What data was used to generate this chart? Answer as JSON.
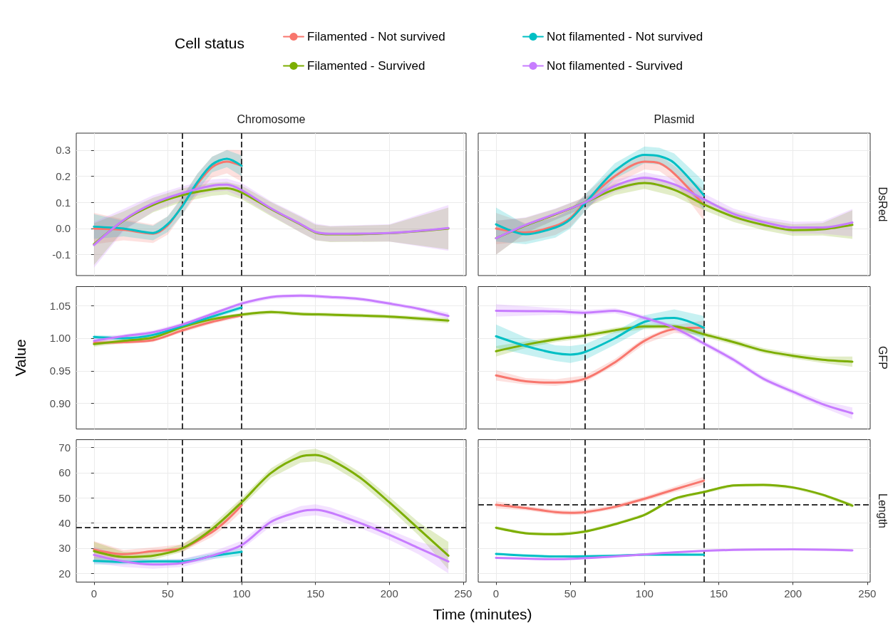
{
  "chart_data": [
    {
      "type": "line",
      "title": "Chromosome",
      "legend_title": "Cell status",
      "legend": "top",
      "grid": true,
      "tick_labels": "y",
      "xlim": [
        -12,
        252
      ],
      "xticks": [
        0,
        50,
        100,
        150,
        200,
        250
      ],
      "ylim": [
        -0.18,
        0.365
      ],
      "yticks": [
        -0.1,
        {
          "value": 0,
          "label": "0.0"
        },
        0.1,
        0.2,
        0.3
      ],
      "ref_lines": [
        {
          "axis": "x",
          "value": 60,
          "color": "#333333",
          "line_style": "dashed"
        },
        {
          "axis": "x",
          "value": 100,
          "color": "#333333",
          "line_style": "dashed"
        }
      ],
      "series": [
        {
          "name": "Filamented - Not survived",
          "color": "#f8766d",
          "x": [
            0,
            20,
            40,
            50,
            60,
            70,
            80,
            90,
            100
          ],
          "values": [
            0.0,
            -0.005,
            -0.02,
            0.012,
            0.09,
            0.17,
            0.235,
            0.256,
            0.24
          ],
          "lower": [
            -0.06,
            -0.045,
            -0.055,
            -0.023,
            0.055,
            0.13,
            0.195,
            0.211,
            0.18
          ],
          "upper": [
            0.06,
            0.035,
            0.015,
            0.047,
            0.125,
            0.21,
            0.275,
            0.301,
            0.3
          ]
        },
        {
          "name": "Filamented - Survived",
          "color": "#7cae00",
          "x": [
            0,
            20,
            40,
            60,
            80,
            90,
            100,
            120,
            140,
            150,
            160,
            200,
            240
          ],
          "values": [
            -0.06,
            0.03,
            0.09,
            0.128,
            0.15,
            0.154,
            0.138,
            0.074,
            0.015,
            -0.015,
            -0.022,
            -0.018,
            0.0
          ],
          "lower": [
            -0.14,
            -0.005,
            0.062,
            0.102,
            0.125,
            0.13,
            0.112,
            0.047,
            -0.015,
            -0.045,
            -0.052,
            -0.05,
            -0.08
          ],
          "upper": [
            0.02,
            0.065,
            0.118,
            0.154,
            0.175,
            0.178,
            0.164,
            0.101,
            0.045,
            0.015,
            0.008,
            0.014,
            0.08
          ]
        },
        {
          "name": "Not filamented - Not survived",
          "color": "#00bfc4",
          "x": [
            0,
            20,
            40,
            50,
            60,
            70,
            80,
            90,
            100
          ],
          "values": [
            0.007,
            0.0,
            -0.017,
            0.017,
            0.087,
            0.177,
            0.245,
            0.267,
            0.24
          ],
          "lower": [
            -0.04,
            -0.03,
            -0.045,
            -0.013,
            0.055,
            0.145,
            0.215,
            0.235,
            0.2
          ],
          "upper": [
            0.055,
            0.03,
            0.011,
            0.047,
            0.12,
            0.21,
            0.275,
            0.3,
            0.28
          ]
        },
        {
          "name": "Not filamented - Survived",
          "color": "#c77cff",
          "x": [
            0,
            20,
            40,
            60,
            80,
            90,
            100,
            120,
            140,
            150,
            160,
            200,
            240
          ],
          "values": [
            -0.063,
            0.032,
            0.096,
            0.136,
            0.164,
            0.168,
            0.147,
            0.077,
            0.017,
            -0.013,
            -0.02,
            -0.017,
            0.002
          ],
          "lower": [
            -0.15,
            -0.01,
            0.065,
            0.11,
            0.14,
            0.145,
            0.12,
            0.05,
            -0.015,
            -0.045,
            -0.05,
            -0.05,
            -0.085
          ],
          "upper": [
            0.025,
            0.075,
            0.127,
            0.162,
            0.188,
            0.191,
            0.174,
            0.104,
            0.049,
            0.019,
            0.01,
            0.016,
            0.09
          ]
        }
      ]
    },
    {
      "type": "line",
      "title": "Plasmid",
      "y2label": "DsRed",
      "grid": true,
      "tick_labels": false,
      "xlim": [
        -12,
        252
      ],
      "xticks": [
        0,
        50,
        100,
        150,
        200,
        250
      ],
      "ylim": [
        -0.18,
        0.365
      ],
      "yticks": [
        -0.1,
        0,
        0.1,
        0.2,
        0.3
      ],
      "ref_lines": [
        {
          "axis": "x",
          "value": 60,
          "color": "#333333",
          "line_style": "dashed"
        },
        {
          "axis": "x",
          "value": 140,
          "color": "#333333",
          "line_style": "dashed"
        }
      ],
      "series": [
        {
          "color": "#f8766d",
          "x": [
            0,
            20,
            40,
            50,
            60,
            80,
            100,
            110,
            120,
            140
          ],
          "values": [
            0.0,
            -0.015,
            0.01,
            0.04,
            0.1,
            0.2,
            0.256,
            0.25,
            0.21,
            0.09
          ],
          "lower": [
            -0.06,
            -0.05,
            -0.025,
            0.005,
            0.068,
            0.17,
            0.226,
            0.22,
            0.18,
            0.03
          ],
          "upper": [
            0.06,
            0.02,
            0.045,
            0.075,
            0.132,
            0.23,
            0.286,
            0.28,
            0.24,
            0.15
          ]
        },
        {
          "color": "#7cae00",
          "x": [
            0,
            20,
            40,
            60,
            80,
            100,
            120,
            140,
            160,
            180,
            200,
            220,
            240
          ],
          "values": [
            -0.037,
            0.012,
            0.054,
            0.1,
            0.15,
            0.174,
            0.148,
            0.092,
            0.045,
            0.014,
            -0.006,
            -0.003,
            0.014
          ],
          "lower": [
            -0.1,
            -0.017,
            0.033,
            0.08,
            0.128,
            0.152,
            0.124,
            0.07,
            0.025,
            -0.006,
            -0.028,
            -0.027,
            -0.04
          ],
          "upper": [
            0.03,
            0.041,
            0.075,
            0.12,
            0.172,
            0.196,
            0.172,
            0.114,
            0.065,
            0.034,
            0.016,
            0.021,
            0.07
          ]
        },
        {
          "color": "#00bfc4",
          "x": [
            0,
            20,
            40,
            50,
            60,
            80,
            100,
            110,
            120,
            140
          ],
          "values": [
            0.016,
            -0.022,
            0.004,
            0.035,
            0.097,
            0.22,
            0.282,
            0.277,
            0.251,
            0.127
          ],
          "lower": [
            -0.05,
            -0.06,
            -0.035,
            0.0,
            0.065,
            0.19,
            0.25,
            0.245,
            0.215,
            0.07
          ],
          "upper": [
            0.08,
            0.015,
            0.043,
            0.07,
            0.13,
            0.25,
            0.314,
            0.309,
            0.287,
            0.18
          ]
        },
        {
          "color": "#c77cff",
          "x": [
            0,
            20,
            40,
            60,
            80,
            100,
            120,
            140,
            160,
            180,
            200,
            220,
            240
          ],
          "values": [
            -0.037,
            0.014,
            0.056,
            0.1,
            0.163,
            0.194,
            0.169,
            0.112,
            0.056,
            0.025,
            0.004,
            0.004,
            0.023
          ],
          "lower": [
            -0.1,
            -0.015,
            0.035,
            0.08,
            0.14,
            0.172,
            0.145,
            0.09,
            0.036,
            0.005,
            -0.018,
            -0.02,
            -0.03
          ],
          "upper": [
            0.03,
            0.043,
            0.077,
            0.12,
            0.186,
            0.216,
            0.193,
            0.134,
            0.076,
            0.045,
            0.026,
            0.028,
            0.075
          ]
        }
      ]
    },
    {
      "type": "line",
      "ylabel": "Value",
      "grid": true,
      "tick_labels": "y",
      "xlim": [
        -12,
        252
      ],
      "xticks": [
        0,
        50,
        100,
        150,
        200,
        250
      ],
      "ylim": [
        0.861,
        1.079
      ],
      "yticks": [
        {
          "value": 0.9,
          "label": "0.90"
        },
        0.95,
        {
          "value": 1,
          "label": "1.00"
        },
        1.05
      ],
      "ref_lines": [
        {
          "axis": "x",
          "value": 60,
          "color": "#333333",
          "line_style": "dashed"
        },
        {
          "axis": "x",
          "value": 100,
          "color": "#333333",
          "line_style": "dashed"
        }
      ],
      "series": [
        {
          "color": "#f8766d",
          "x": [
            0,
            20,
            40,
            60,
            80,
            100
          ],
          "values": [
            0.993,
            0.994,
            0.997,
            1.012,
            1.025,
            1.035
          ],
          "lower": [
            0.99,
            0.991,
            0.994,
            1.009,
            1.022,
            1.032
          ],
          "upper": [
            0.996,
            0.997,
            1.0,
            1.015,
            1.028,
            1.038
          ]
        },
        {
          "color": "#7cae00",
          "x": [
            0,
            20,
            40,
            60,
            80,
            100,
            120,
            140,
            160,
            200,
            240
          ],
          "values": [
            0.991,
            0.996,
            1.001,
            1.017,
            1.029,
            1.036,
            1.04,
            1.037,
            1.036,
            1.033,
            1.027
          ],
          "lower": [
            0.987,
            0.993,
            0.998,
            1.014,
            1.026,
            1.033,
            1.037,
            1.034,
            1.033,
            1.03,
            1.023
          ],
          "upper": [
            0.995,
            0.999,
            1.004,
            1.02,
            1.032,
            1.039,
            1.043,
            1.04,
            1.039,
            1.036,
            1.031
          ]
        },
        {
          "color": "#00bfc4",
          "x": [
            0,
            20,
            40,
            60,
            80,
            100
          ],
          "values": [
            1.002,
            1.0,
            1.005,
            1.019,
            1.033,
            1.047
          ],
          "lower": [
            0.999,
            0.997,
            1.002,
            1.016,
            1.03,
            1.043
          ],
          "upper": [
            1.005,
            1.003,
            1.008,
            1.022,
            1.036,
            1.051
          ]
        },
        {
          "color": "#c77cff",
          "x": [
            0,
            20,
            40,
            60,
            80,
            100,
            120,
            140,
            160,
            180,
            200,
            220,
            240
          ],
          "values": [
            0.996,
            1.003,
            1.009,
            1.021,
            1.037,
            1.053,
            1.063,
            1.065,
            1.063,
            1.06,
            1.053,
            1.045,
            1.034
          ],
          "lower": [
            0.991,
            1.0,
            1.006,
            1.018,
            1.034,
            1.05,
            1.06,
            1.062,
            1.06,
            1.057,
            1.05,
            1.042,
            1.029
          ],
          "upper": [
            1.001,
            1.006,
            1.012,
            1.024,
            1.04,
            1.056,
            1.066,
            1.068,
            1.066,
            1.063,
            1.056,
            1.048,
            1.039
          ]
        }
      ]
    },
    {
      "type": "line",
      "y2label": "GFP",
      "grid": true,
      "tick_labels": false,
      "xlim": [
        -12,
        252
      ],
      "xticks": [
        0,
        50,
        100,
        150,
        200,
        250
      ],
      "ylim": [
        0.861,
        1.079
      ],
      "yticks": [
        0.9,
        0.95,
        1,
        1.05
      ],
      "ref_lines": [
        {
          "axis": "x",
          "value": 60,
          "color": "#333333",
          "line_style": "dashed"
        },
        {
          "axis": "x",
          "value": 140,
          "color": "#333333",
          "line_style": "dashed"
        }
      ],
      "series": [
        {
          "color": "#f8766d",
          "x": [
            0,
            20,
            40,
            60,
            80,
            100,
            120,
            140
          ],
          "values": [
            0.943,
            0.934,
            0.932,
            0.938,
            0.963,
            0.996,
            1.014,
            1.016
          ],
          "lower": [
            0.935,
            0.929,
            0.927,
            0.933,
            0.958,
            0.991,
            1.008,
            1.005
          ],
          "upper": [
            0.951,
            0.939,
            0.937,
            0.943,
            0.968,
            1.001,
            1.02,
            1.027
          ]
        },
        {
          "color": "#7cae00",
          "x": [
            0,
            20,
            40,
            60,
            80,
            100,
            120,
            140,
            160,
            180,
            200,
            220,
            240
          ],
          "values": [
            0.98,
            0.99,
            0.998,
            1.004,
            1.012,
            1.018,
            1.018,
            1.006,
            0.994,
            0.981,
            0.973,
            0.967,
            0.964
          ],
          "lower": [
            0.972,
            0.985,
            0.994,
            1.0,
            1.008,
            1.014,
            1.014,
            1.002,
            0.99,
            0.977,
            0.969,
            0.962,
            0.956
          ],
          "upper": [
            0.988,
            0.995,
            1.002,
            1.008,
            1.016,
            1.022,
            1.022,
            1.01,
            0.998,
            0.985,
            0.977,
            0.972,
            0.972
          ]
        },
        {
          "color": "#00bfc4",
          "x": [
            0,
            20,
            40,
            50,
            60,
            80,
            100,
            120,
            140
          ],
          "values": [
            1.003,
            0.988,
            0.977,
            0.975,
            0.979,
            1.0,
            1.025,
            1.031,
            1.016
          ],
          "lower": [
            0.985,
            0.975,
            0.965,
            0.962,
            0.967,
            0.99,
            1.015,
            1.018,
            0.998
          ],
          "upper": [
            1.021,
            1.001,
            0.989,
            0.988,
            0.991,
            1.01,
            1.035,
            1.044,
            1.034
          ]
        },
        {
          "color": "#c77cff",
          "x": [
            0,
            40,
            60,
            80,
            100,
            120,
            140,
            160,
            180,
            200,
            220,
            240
          ],
          "values": [
            1.042,
            1.041,
            1.039,
            1.042,
            1.031,
            1.016,
            0.992,
            0.967,
            0.938,
            0.918,
            0.899,
            0.885
          ],
          "lower": [
            1.033,
            1.036,
            1.035,
            1.038,
            1.027,
            1.012,
            0.988,
            0.963,
            0.934,
            0.914,
            0.894,
            0.876
          ],
          "upper": [
            1.052,
            1.046,
            1.043,
            1.046,
            1.035,
            1.02,
            0.996,
            0.971,
            0.942,
            0.922,
            0.904,
            0.894
          ]
        }
      ]
    },
    {
      "type": "line",
      "xlabel": "Time (minutes)",
      "grid": true,
      "xlim": [
        -12,
        252
      ],
      "xticks": [
        0,
        50,
        100,
        150,
        200,
        250
      ],
      "ylim": [
        16.5,
        73.1
      ],
      "yticks": [
        20,
        30,
        40,
        50,
        60,
        70
      ],
      "ref_lines": [
        {
          "axis": "x",
          "value": 60,
          "color": "#333333",
          "line_style": "dashed"
        },
        {
          "axis": "x",
          "value": 100,
          "color": "#333333",
          "line_style": "dashed"
        },
        {
          "axis": "y",
          "value": 38.3,
          "color": "#333333",
          "line_style": "dashed"
        }
      ],
      "series": [
        {
          "color": "#f8766d",
          "x": [
            0,
            20,
            40,
            60,
            80,
            90,
            100
          ],
          "values": [
            29.4,
            27.6,
            28.8,
            30.0,
            36.4,
            41.1,
            47.0
          ],
          "lower": [
            26.0,
            26.0,
            27.3,
            28.5,
            34.5,
            39.0,
            44.5
          ],
          "upper": [
            32.8,
            29.2,
            30.3,
            31.5,
            38.3,
            43.2,
            49.5
          ]
        },
        {
          "color": "#7cae00",
          "x": [
            0,
            20,
            40,
            60,
            80,
            100,
            120,
            140,
            150,
            160,
            180,
            200,
            220,
            240
          ],
          "values": [
            28.8,
            26.5,
            27.0,
            30.0,
            37.6,
            48.2,
            59.9,
            66.4,
            67.0,
            65.2,
            58.1,
            48.2,
            37.6,
            27.0
          ],
          "lower": [
            25.0,
            25.0,
            25.5,
            28.5,
            36.0,
            46.5,
            58.0,
            64.0,
            64.5,
            63.0,
            56.0,
            46.0,
            35.0,
            21.5
          ],
          "upper": [
            32.5,
            28.5,
            28.5,
            31.5,
            39.2,
            49.9,
            61.8,
            68.8,
            69.5,
            67.4,
            60.2,
            50.4,
            40.2,
            32.5
          ]
        },
        {
          "color": "#00bfc4",
          "x": [
            0,
            20,
            40,
            60,
            80,
            100
          ],
          "values": [
            24.9,
            24.5,
            24.7,
            24.7,
            26.8,
            28.5
          ],
          "lower": [
            23.5,
            23.5,
            23.7,
            23.7,
            25.6,
            27.0
          ],
          "upper": [
            26.3,
            25.5,
            25.7,
            25.7,
            28.0,
            30.0
          ]
        },
        {
          "color": "#c77cff",
          "x": [
            0,
            20,
            40,
            60,
            80,
            100,
            120,
            140,
            150,
            160,
            180,
            200,
            220,
            240
          ],
          "values": [
            27.3,
            24.7,
            23.5,
            24.1,
            27.0,
            31.2,
            40.5,
            44.6,
            45.2,
            44.1,
            40.0,
            35.3,
            30.0,
            24.7
          ],
          "lower": [
            24.0,
            22.5,
            21.8,
            22.5,
            25.5,
            29.5,
            38.8,
            42.5,
            43.0,
            42.0,
            38.0,
            33.3,
            27.5,
            20.0
          ],
          "upper": [
            30.6,
            26.9,
            25.2,
            25.7,
            28.5,
            32.9,
            42.2,
            46.7,
            47.4,
            46.2,
            42.0,
            37.3,
            32.5,
            29.4
          ]
        }
      ]
    },
    {
      "type": "line",
      "y2label": "Length",
      "grid": true,
      "tick_labels": "x",
      "xlim": [
        -12,
        252
      ],
      "xticks": [
        0,
        50,
        100,
        150,
        200,
        250
      ],
      "ylim": [
        16.5,
        73.1
      ],
      "yticks": [
        20,
        30,
        40,
        50,
        60,
        70
      ],
      "ref_lines": [
        {
          "axis": "x",
          "value": 60,
          "color": "#333333",
          "line_style": "dashed"
        },
        {
          "axis": "x",
          "value": 140,
          "color": "#333333",
          "line_style": "dashed"
        },
        {
          "axis": "y",
          "value": 47.2,
          "color": "#333333",
          "line_style": "dashed"
        }
      ],
      "series": [
        {
          "color": "#f8766d",
          "x": [
            0,
            20,
            40,
            50,
            60,
            80,
            100,
            120,
            140
          ],
          "values": [
            47.2,
            45.9,
            44.3,
            44.0,
            44.3,
            46.4,
            49.6,
            53.3,
            56.8
          ],
          "lower": [
            45.8,
            45.0,
            43.4,
            43.1,
            43.4,
            45.5,
            48.7,
            52.2,
            55.2
          ],
          "upper": [
            48.6,
            46.8,
            45.2,
            44.9,
            45.2,
            47.3,
            50.5,
            54.4,
            58.4
          ]
        },
        {
          "color": "#7cae00",
          "x": [
            0,
            20,
            40,
            60,
            80,
            100,
            120,
            140,
            160,
            180,
            200,
            220,
            240
          ],
          "values": [
            38.1,
            35.9,
            35.5,
            36.6,
            39.5,
            43.2,
            49.6,
            52.3,
            54.9,
            55.1,
            54.1,
            51.2,
            46.9
          ],
          "lower": [
            37.5,
            35.3,
            34.9,
            36.0,
            38.9,
            42.6,
            49.0,
            51.7,
            54.3,
            54.5,
            53.5,
            50.6,
            46.1
          ],
          "upper": [
            38.7,
            36.5,
            36.1,
            37.2,
            40.1,
            43.8,
            50.2,
            52.9,
            55.5,
            55.7,
            54.7,
            51.8,
            47.7
          ]
        },
        {
          "color": "#00bfc4",
          "x": [
            0,
            40,
            80,
            100,
            140
          ],
          "values": [
            27.7,
            26.7,
            27.0,
            27.4,
            27.4
          ],
          "lower": [
            27.2,
            26.3,
            26.6,
            27.0,
            26.9
          ],
          "upper": [
            28.2,
            27.1,
            27.4,
            27.8,
            27.9
          ]
        },
        {
          "color": "#c77cff",
          "x": [
            0,
            40,
            80,
            120,
            160,
            200,
            240
          ],
          "values": [
            26.1,
            25.6,
            26.7,
            28.3,
            29.3,
            29.5,
            29.1
          ],
          "lower": [
            25.7,
            25.2,
            26.3,
            27.9,
            28.9,
            29.1,
            28.6
          ],
          "upper": [
            26.5,
            26.0,
            27.1,
            28.7,
            29.7,
            29.9,
            29.6
          ]
        }
      ]
    }
  ]
}
